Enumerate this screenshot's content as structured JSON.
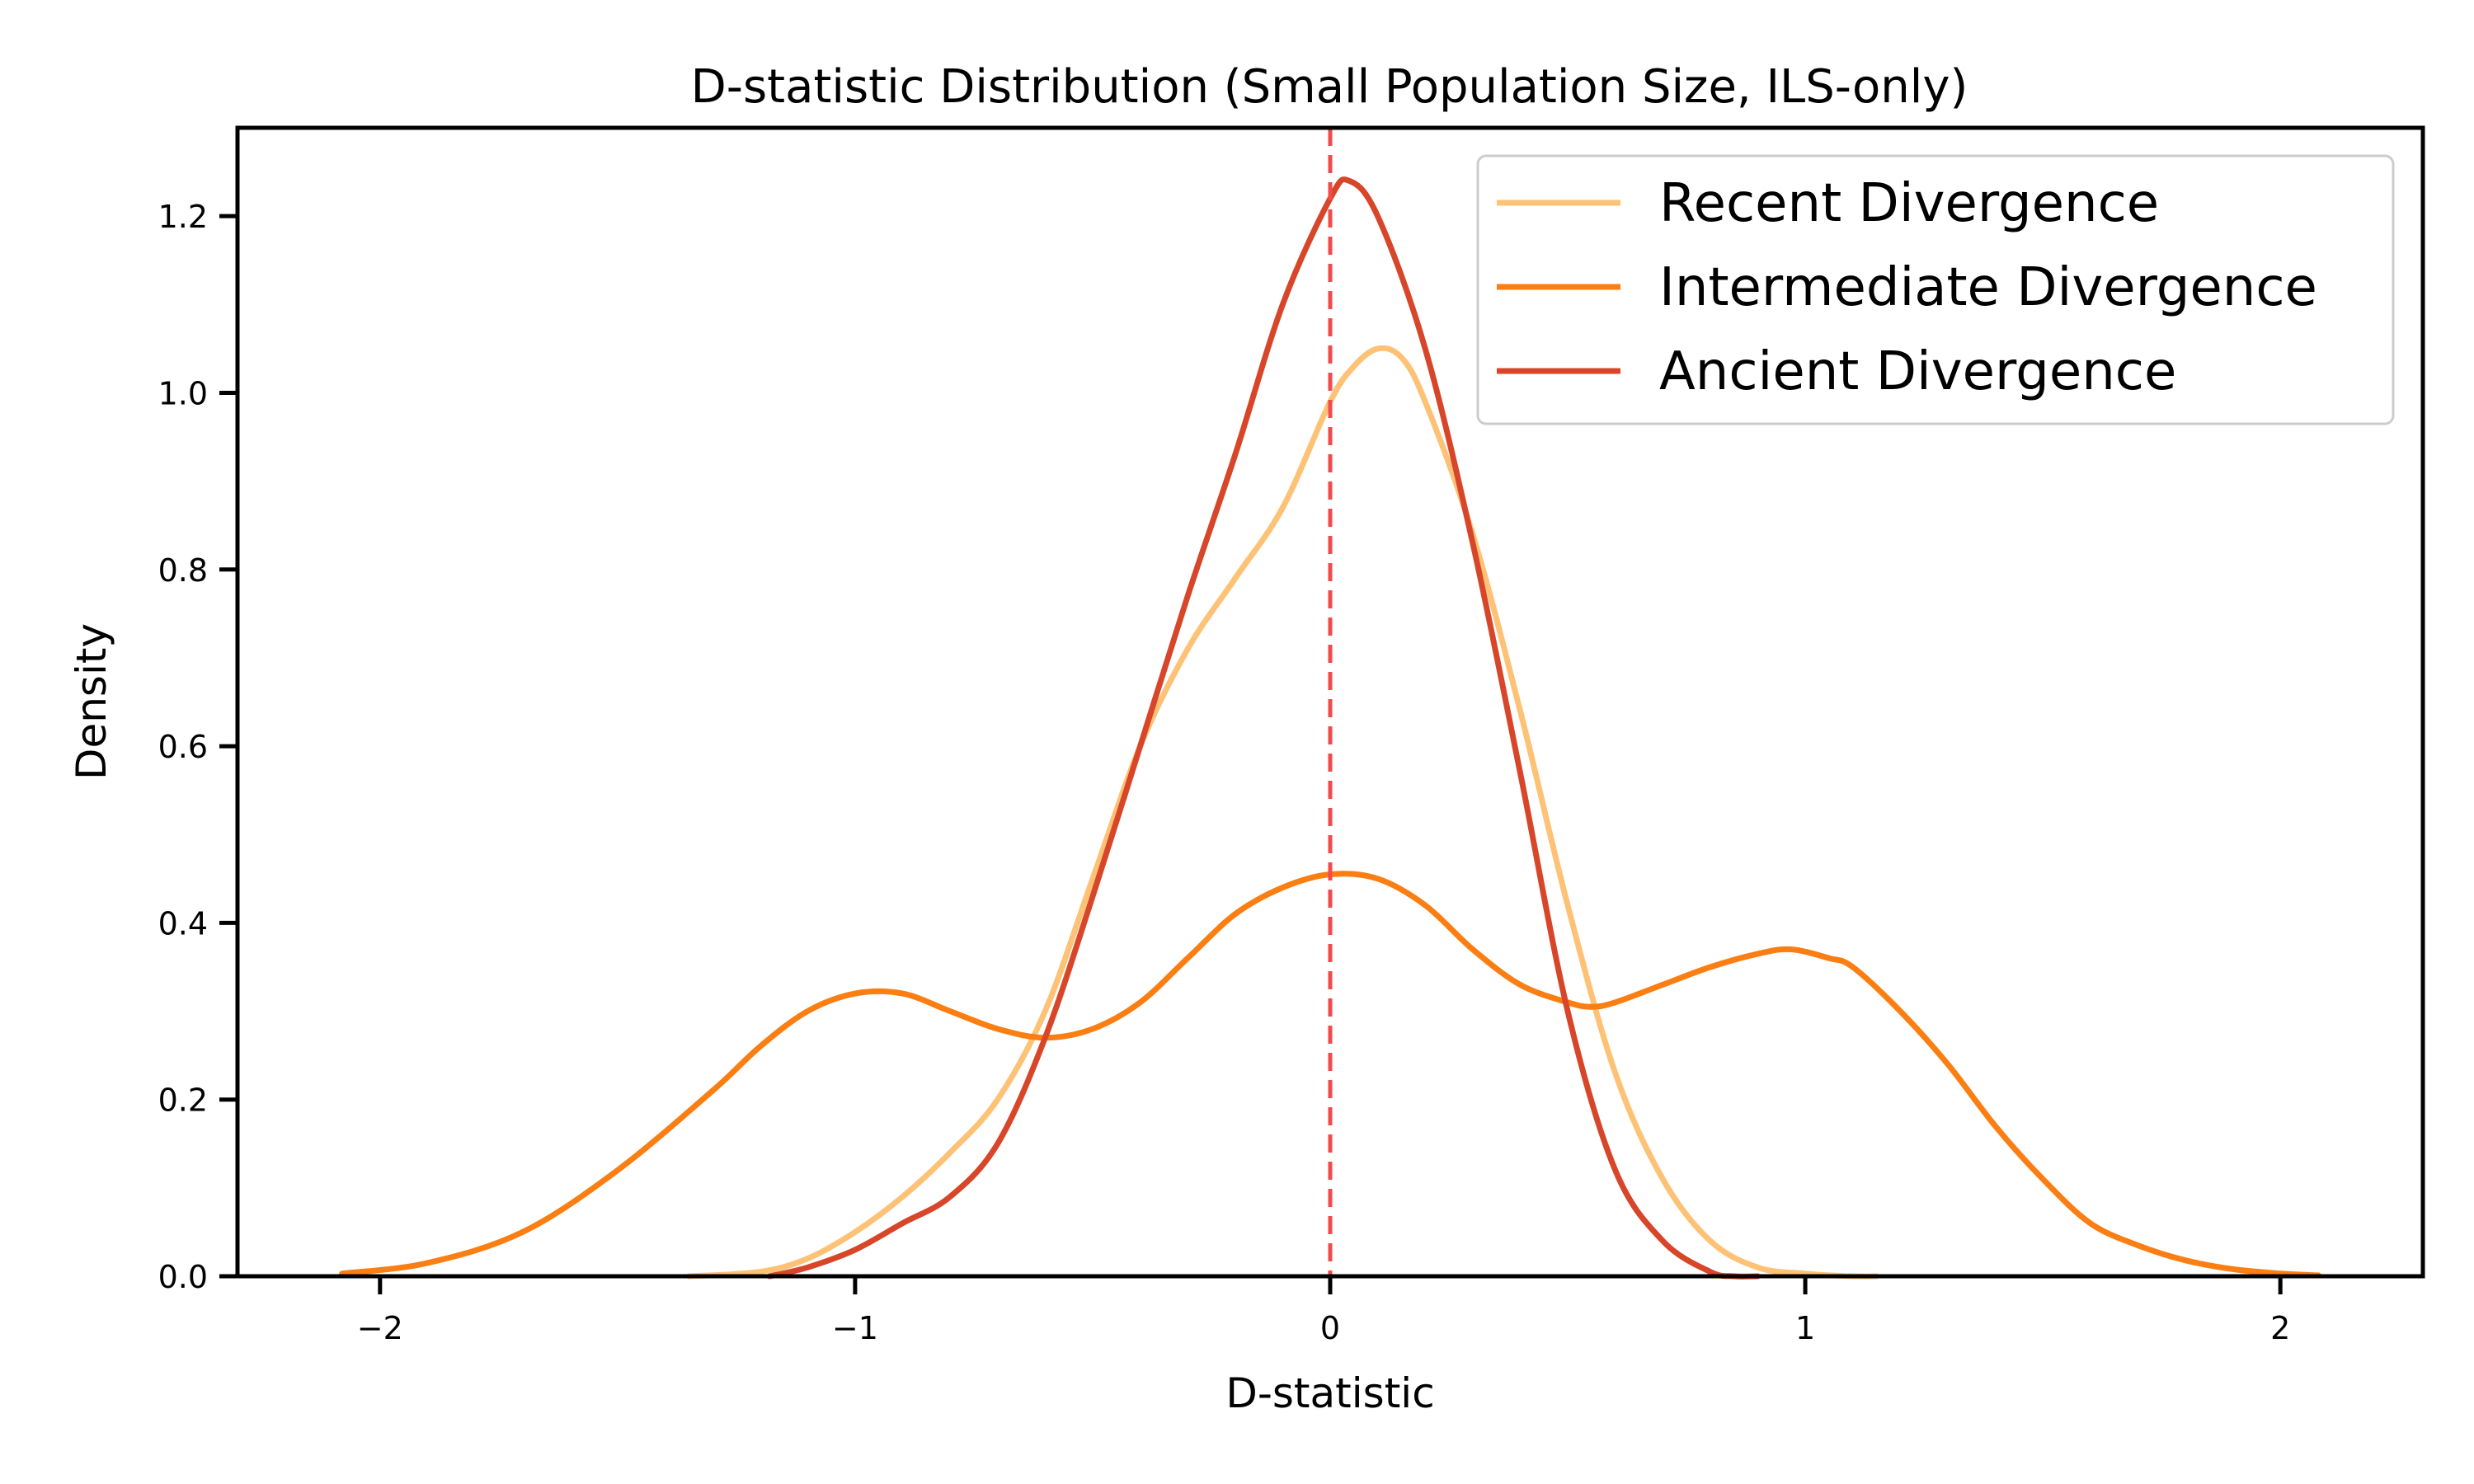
{
  "chart_data": {
    "type": "line",
    "title": "D-statistic Distribution (Small Population Size, ILS-only)",
    "xlabel": "D-statistic",
    "ylabel": "Density",
    "xlim": [
      -2.3,
      2.3
    ],
    "ylim": [
      0,
      1.3
    ],
    "xticks": [
      -2,
      -1,
      0,
      1,
      2
    ],
    "xtick_labels": [
      "−2",
      "−1",
      "0",
      "1",
      "2"
    ],
    "yticks": [
      0,
      0.2,
      0.4,
      0.6,
      0.8,
      1.0,
      1.2
    ],
    "ytick_labels": [
      "0.0",
      "0.2",
      "0.4",
      "0.6",
      "0.8",
      "1.0",
      "1.2"
    ],
    "grid": false,
    "legend_position": "top-right",
    "reference_line": {
      "x": 0,
      "color": "#f44a4a",
      "style": "dashed"
    },
    "series": [
      {
        "name": "Recent Divergence",
        "color": "#fdc276",
        "x": [
          -1.35,
          -1.2,
          -1.1,
          -1.0,
          -0.9,
          -0.8,
          -0.7,
          -0.6,
          -0.5,
          -0.4,
          -0.3,
          -0.2,
          -0.1,
          0.0,
          0.05,
          0.1,
          0.15,
          0.2,
          0.3,
          0.4,
          0.5,
          0.6,
          0.7,
          0.8,
          0.9,
          1.0,
          1.1,
          1.15
        ],
        "y": [
          0.0,
          0.005,
          0.02,
          0.05,
          0.09,
          0.14,
          0.2,
          0.3,
          0.45,
          0.6,
          0.71,
          0.79,
          0.87,
          0.99,
          1.03,
          1.05,
          1.04,
          0.99,
          0.84,
          0.64,
          0.42,
          0.23,
          0.11,
          0.04,
          0.01,
          0.003,
          0.0,
          0.0
        ]
      },
      {
        "name": "Intermediate Divergence",
        "color": "#fb7e13",
        "x": [
          -2.08,
          -1.9,
          -1.7,
          -1.5,
          -1.3,
          -1.2,
          -1.1,
          -1.0,
          -0.9,
          -0.8,
          -0.7,
          -0.6,
          -0.5,
          -0.4,
          -0.3,
          -0.2,
          -0.1,
          0.0,
          0.1,
          0.2,
          0.3,
          0.4,
          0.5,
          0.55,
          0.6,
          0.7,
          0.8,
          0.9,
          0.97,
          1.05,
          1.1,
          1.2,
          1.3,
          1.4,
          1.5,
          1.6,
          1.7,
          1.8,
          1.9,
          2.0,
          2.08
        ],
        "y": [
          0.003,
          0.015,
          0.05,
          0.12,
          0.21,
          0.26,
          0.3,
          0.32,
          0.32,
          0.3,
          0.28,
          0.27,
          0.28,
          0.31,
          0.36,
          0.41,
          0.44,
          0.455,
          0.45,
          0.42,
          0.37,
          0.33,
          0.31,
          0.305,
          0.31,
          0.33,
          0.35,
          0.365,
          0.37,
          0.36,
          0.35,
          0.3,
          0.24,
          0.17,
          0.11,
          0.06,
          0.035,
          0.018,
          0.008,
          0.003,
          0.001
        ]
      },
      {
        "name": "Ancient Divergence",
        "color": "#d8462a",
        "x": [
          -1.18,
          -1.1,
          -1.0,
          -0.9,
          -0.8,
          -0.7,
          -0.6,
          -0.5,
          -0.4,
          -0.3,
          -0.2,
          -0.1,
          0.0,
          0.04,
          0.1,
          0.2,
          0.3,
          0.4,
          0.5,
          0.6,
          0.7,
          0.8,
          0.85,
          0.9
        ],
        "y": [
          0.0,
          0.01,
          0.03,
          0.06,
          0.09,
          0.15,
          0.27,
          0.43,
          0.6,
          0.77,
          0.93,
          1.1,
          1.22,
          1.24,
          1.2,
          1.05,
          0.83,
          0.57,
          0.3,
          0.12,
          0.04,
          0.005,
          0.0,
          0.0
        ]
      }
    ]
  }
}
